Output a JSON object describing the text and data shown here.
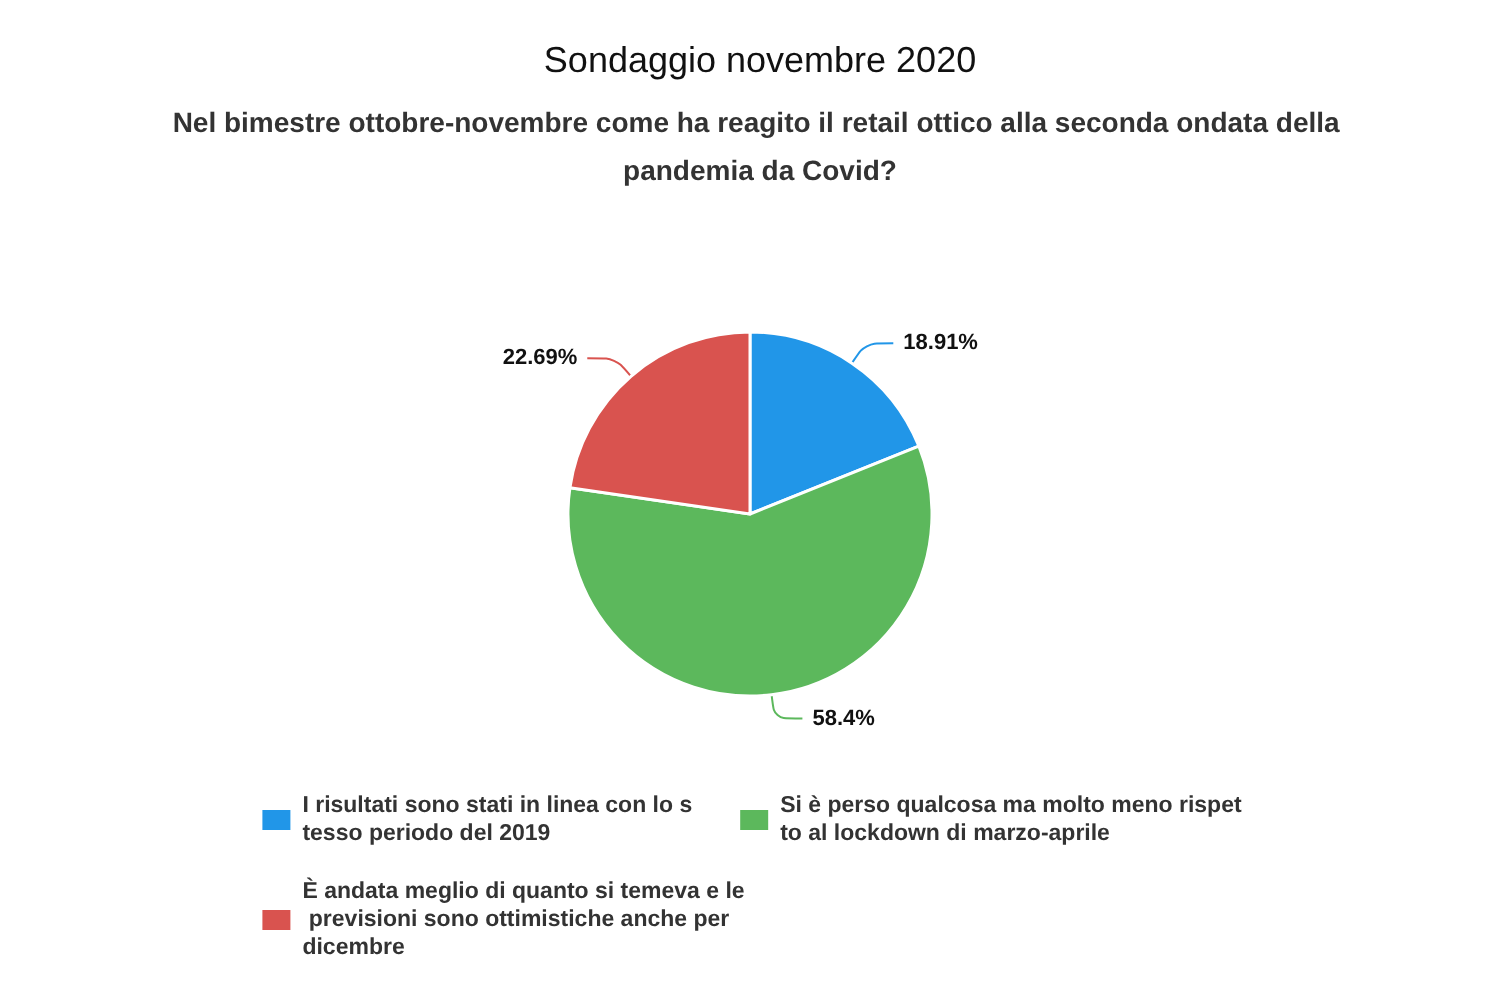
{
  "chart_data": {
    "type": "pie",
    "title": "Sondaggio novembre 2020",
    "subtitle": "Nel bimestre ottobre-novembre come ha reagito il retail ottico alla seconda ondata della pandemia da Covid?",
    "categories": [
      "I risultati sono stati in linea con lo stesso periodo del 2019",
      "Si è perso qualcosa ma molto meno rispetto al lockdown di marzo-aprile",
      "È andata meglio di quanto si temeva e le previsioni sono ottimistiche anche per dicembre"
    ],
    "values": [
      18.91,
      58.4,
      22.69
    ],
    "colors": [
      "#2196e8",
      "#5cb85c",
      "#d9534f"
    ],
    "value_labels": [
      "18.91%",
      "58.4%",
      "22.69%"
    ],
    "legend": "bottom"
  }
}
